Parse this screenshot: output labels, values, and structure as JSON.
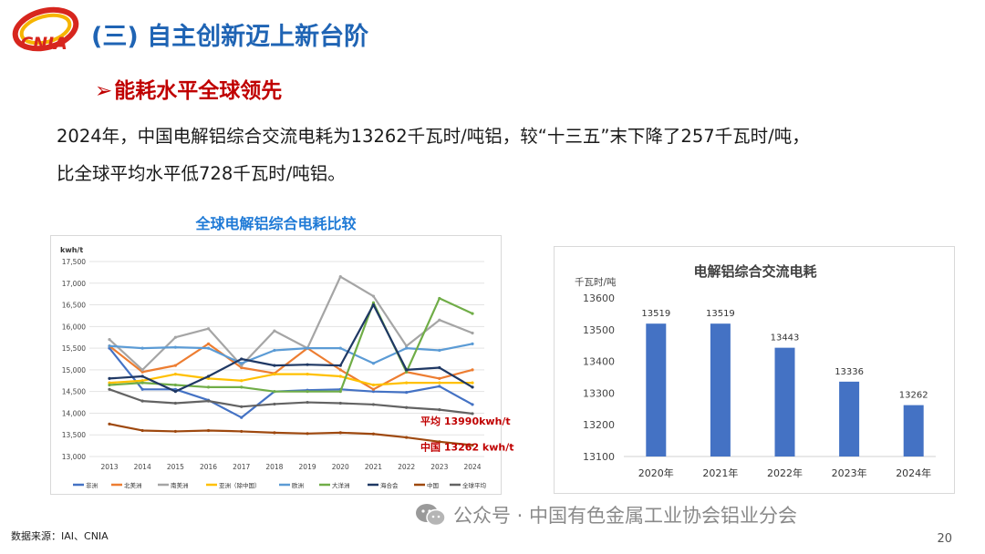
{
  "header": {
    "logo_text": "CNIA",
    "section_title": "(三) 自主创新迈上新台阶",
    "subtitle_arrow": "➢",
    "subtitle": "能耗水平全球领先"
  },
  "body": {
    "line1": "2024年，中国电解铝综合交流电耗为13262千瓦时/吨铝，较“十三五”末下降了257千瓦时/吨，",
    "line2": "比全球平均水平低728千瓦时/吨铝。"
  },
  "footer": {
    "source": "数据来源：IAI、CNIA",
    "watermark": "公众号 · 中国有色金属工业协会铝业分会",
    "page_number": "20"
  },
  "chart_data": [
    {
      "type": "line",
      "title": "全球电解铝综合电耗比较",
      "ylabel": "kwh/t",
      "xlabel": "",
      "ylim": [
        13000,
        17500
      ],
      "yticks": [
        13000,
        13500,
        14000,
        14500,
        15000,
        15500,
        16000,
        16500,
        17000,
        17500
      ],
      "ytick_labels": [
        "13,000",
        "13,500",
        "14,000",
        "14,500",
        "15,000",
        "15,500",
        "16,000",
        "16,500",
        "17,000",
        "17,500"
      ],
      "grid": true,
      "legend": "bottom",
      "x": [
        "2013",
        "2014",
        "2015",
        "2016",
        "2017",
        "2018",
        "2019",
        "2020",
        "2021",
        "2022",
        "2023",
        "2024"
      ],
      "series": [
        {
          "name": "非洲",
          "color": "#4472c4",
          "values": [
            15500,
            14550,
            14550,
            14300,
            13900,
            14500,
            14530,
            14550,
            14500,
            14480,
            14620,
            14200
          ]
        },
        {
          "name": "北美洲",
          "color": "#ed7d31",
          "values": [
            15550,
            14950,
            15100,
            15600,
            15050,
            14920,
            15500,
            15000,
            14550,
            14950,
            14800,
            15000
          ]
        },
        {
          "name": "南美洲",
          "color": "#a5a5a5",
          "values": [
            15700,
            15000,
            15750,
            15950,
            15100,
            15900,
            15500,
            17150,
            16700,
            15550,
            16150,
            15850
          ]
        },
        {
          "name": "亚洲（除中国）",
          "color": "#ffc000",
          "values": [
            14700,
            14750,
            14900,
            14800,
            14750,
            14900,
            14900,
            14850,
            14650,
            14700,
            14700,
            14700
          ]
        },
        {
          "name": "欧洲",
          "color": "#5b9bd5",
          "values": [
            15550,
            15500,
            15520,
            15500,
            15150,
            15450,
            15500,
            15500,
            15150,
            15500,
            15450,
            15600
          ]
        },
        {
          "name": "大洋洲",
          "color": "#70ad47",
          "values": [
            14650,
            14700,
            14650,
            14600,
            14600,
            14500,
            14500,
            14500,
            16550,
            14950,
            16650,
            16300
          ]
        },
        {
          "name": "海合会",
          "color": "#1f3864",
          "values": [
            14800,
            14850,
            14500,
            14850,
            15250,
            15100,
            15120,
            15100,
            16500,
            15000,
            15050,
            14600
          ]
        },
        {
          "name": "中国",
          "color": "#9e480e",
          "values": [
            13750,
            13600,
            13580,
            13600,
            13580,
            13550,
            13530,
            13550,
            13520,
            13440,
            13340,
            13262
          ]
        },
        {
          "name": "全球平均",
          "color": "#636363",
          "values": [
            14550,
            14280,
            14230,
            14280,
            14150,
            14210,
            14250,
            14230,
            14200,
            14130,
            14080,
            13990
          ]
        }
      ],
      "annotations": [
        {
          "text": "平均 13990kwh/t",
          "color": "#c00000"
        },
        {
          "text": "中国 13262 kwh/t",
          "color": "#c00000"
        }
      ]
    },
    {
      "type": "bar",
      "title": "电解铝综合交流电耗",
      "ylabel": "千瓦时/吨",
      "xlabel": "",
      "ylim": [
        13100,
        13600
      ],
      "yticks": [
        13100,
        13200,
        13300,
        13400,
        13500,
        13600
      ],
      "grid": false,
      "color": "#4472c4",
      "categories": [
        "2020年",
        "2021年",
        "2022年",
        "2023年",
        "2024年"
      ],
      "values": [
        13519,
        13519,
        13443,
        13336,
        13262
      ]
    }
  ]
}
